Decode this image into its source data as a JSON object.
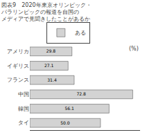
{
  "chart_data": {
    "type": "bar",
    "orientation": "horizontal",
    "title": "図表9　2020年東京オリンピック・\nパラリンピックの報道を自国の\nメディアで見聞きしたことがあるか",
    "categories": [
      "アメリカ",
      "イギリス",
      "フランス",
      "中国",
      "韓国",
      "タイ"
    ],
    "series": [
      {
        "name": "ある",
        "color": "#d3d3d3",
        "values": [
          29.8,
          27.1,
          31.4,
          72.8,
          56.1,
          50.0
        ],
        "value_labels": [
          "29.8",
          "27.1",
          "31.4",
          "72.8",
          "56.1",
          "50.0"
        ]
      }
    ],
    "xlim": [
      0,
      78
    ],
    "annotations": [
      "(%)"
    ],
    "data_labels": true,
    "tick_labels": "y",
    "grid": false
  }
}
